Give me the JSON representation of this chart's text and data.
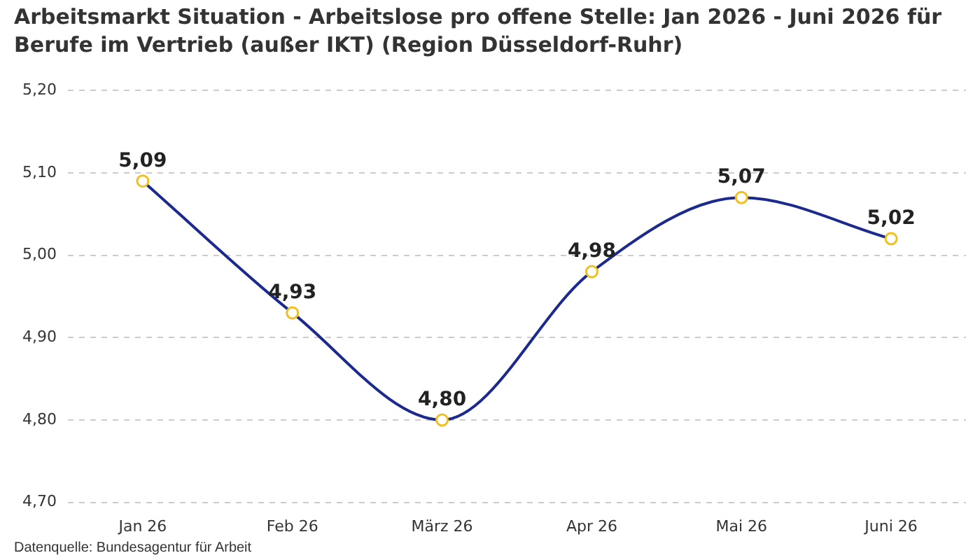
{
  "chart_data": {
    "type": "line",
    "title": "Arbeitsmarkt Situation - Arbeitslose pro offene Stelle: Jan 2026 - Juni 2026 für Berufe im Vertrieb (außer IKT) (Region Düsseldorf-Ruhr)",
    "categories": [
      "Jan 26",
      "Feb 26",
      "März 26",
      "Apr 26",
      "Mai 26",
      "Juni 26"
    ],
    "series": [
      {
        "color": "#1b2a8c",
        "values": [
          5.09,
          4.93,
          4.8,
          4.98,
          5.07,
          5.02
        ],
        "value_labels": [
          "5,09",
          "4,93",
          "4,80",
          "4,98",
          "5,07",
          "5,02"
        ]
      }
    ],
    "ylim": [
      4.7,
      5.2
    ],
    "yticks": [
      {
        "value": 4.7,
        "label": "4,70"
      },
      {
        "value": 4.8,
        "label": "4,80"
      },
      {
        "value": 4.9,
        "label": "4,90"
      },
      {
        "value": 5.0,
        "label": "5,00"
      },
      {
        "value": 5.1,
        "label": "5,10"
      },
      {
        "value": 5.2,
        "label": "5,20"
      }
    ],
    "grid": "y",
    "legend": false,
    "marker": "circle",
    "line_style": "solid",
    "annotations": [
      "Datenquelle: Bundesagentur für Arbeit"
    ]
  }
}
